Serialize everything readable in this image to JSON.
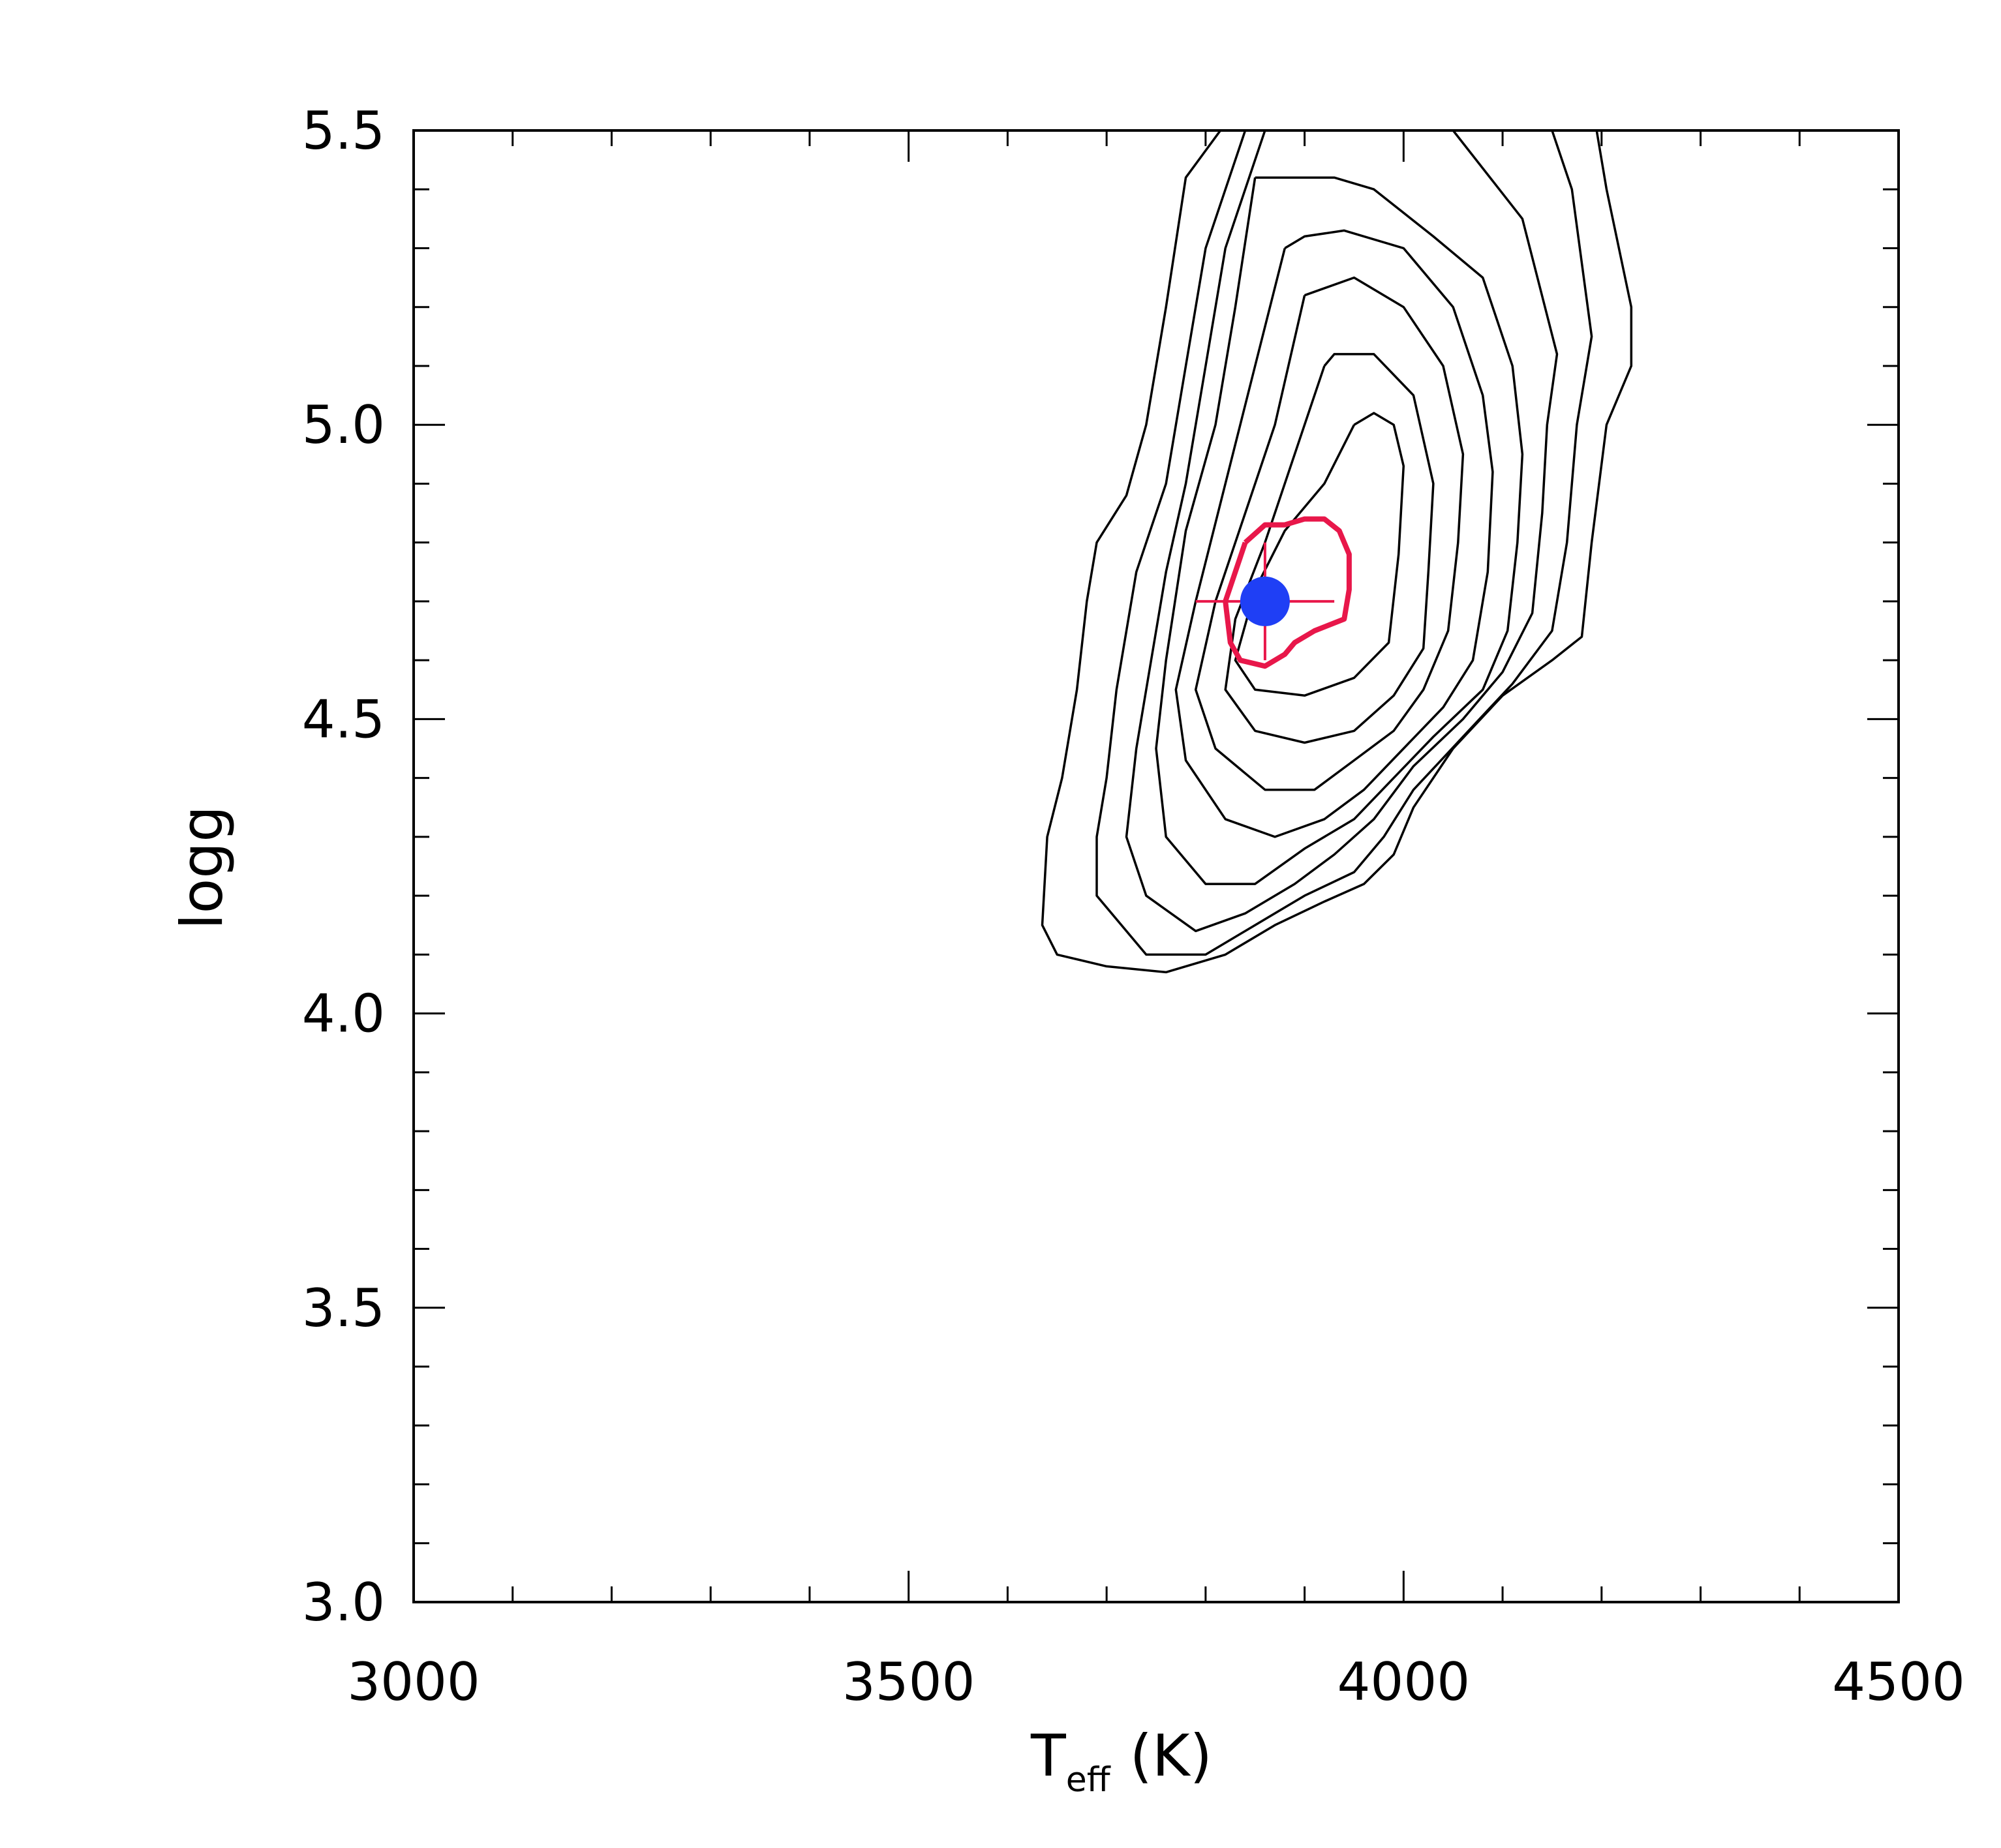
{
  "chart_data": {
    "type": "contour",
    "title": "",
    "xlabel": {
      "main": "T",
      "sub": "eff",
      "units": "(K)"
    },
    "ylabel": "logg",
    "xlim": [
      3000,
      4500
    ],
    "ylim": [
      3.0,
      5.5
    ],
    "x_ticks": [
      3000,
      3500,
      4000,
      4500
    ],
    "x_tick_labels": [
      "3000",
      "3500",
      "4000",
      "4500"
    ],
    "x_minor_step": 100,
    "y_ticks": [
      3.0,
      3.5,
      4.0,
      4.5,
      5.0,
      5.5
    ],
    "y_tick_labels": [
      "3.0",
      "3.5",
      "4.0",
      "4.5",
      "5.0",
      "5.5"
    ],
    "y_minor_step": 0.1,
    "grid": false,
    "contours": [
      {
        "color": "#000000",
        "points": [
          [
            3815,
            5.5
          ],
          [
            3780,
            5.42
          ],
          [
            3760,
            5.2
          ],
          [
            3740,
            5.0
          ],
          [
            3720,
            4.88
          ],
          [
            3690,
            4.8
          ],
          [
            3680,
            4.7
          ],
          [
            3670,
            4.55
          ],
          [
            3655,
            4.4
          ],
          [
            3640,
            4.3
          ],
          [
            3635,
            4.15
          ],
          [
            3650,
            4.1
          ],
          [
            3700,
            4.08
          ],
          [
            3760,
            4.07
          ],
          [
            3820,
            4.1
          ],
          [
            3870,
            4.15
          ],
          [
            3920,
            4.19
          ],
          [
            3960,
            4.22
          ],
          [
            3990,
            4.27
          ],
          [
            4010,
            4.35
          ],
          [
            4050,
            4.45
          ],
          [
            4100,
            4.54
          ],
          [
            4150,
            4.6
          ],
          [
            4180,
            4.64
          ],
          [
            4190,
            4.8
          ],
          [
            4205,
            5.0
          ],
          [
            4230,
            5.1
          ],
          [
            4230,
            5.2
          ],
          [
            4205,
            5.4
          ],
          [
            4195,
            5.5
          ]
        ]
      },
      {
        "color": "#000000",
        "points": [
          [
            3840,
            5.5
          ],
          [
            3800,
            5.3
          ],
          [
            3780,
            5.1
          ],
          [
            3760,
            4.9
          ],
          [
            3730,
            4.75
          ],
          [
            3710,
            4.55
          ],
          [
            3700,
            4.4
          ],
          [
            3690,
            4.3
          ],
          [
            3690,
            4.2
          ],
          [
            3740,
            4.1
          ],
          [
            3800,
            4.1
          ],
          [
            3850,
            4.15
          ],
          [
            3900,
            4.2
          ],
          [
            3950,
            4.24
          ],
          [
            3980,
            4.3
          ],
          [
            4010,
            4.38
          ],
          [
            4060,
            4.47
          ],
          [
            4110,
            4.56
          ],
          [
            4150,
            4.65
          ],
          [
            4165,
            4.8
          ],
          [
            4175,
            5.0
          ],
          [
            4190,
            5.15
          ],
          [
            4170,
            5.4
          ],
          [
            4150,
            5.5
          ]
        ]
      },
      {
        "color": "#000000",
        "points": [
          [
            3860,
            5.5
          ],
          [
            3820,
            5.3
          ],
          [
            3800,
            5.1
          ],
          [
            3780,
            4.9
          ],
          [
            3760,
            4.75
          ],
          [
            3740,
            4.55
          ],
          [
            3730,
            4.45
          ],
          [
            3720,
            4.3
          ],
          [
            3740,
            4.2
          ],
          [
            3790,
            4.14
          ],
          [
            3840,
            4.17
          ],
          [
            3890,
            4.22
          ],
          [
            3930,
            4.27
          ],
          [
            3970,
            4.33
          ],
          [
            4010,
            4.42
          ],
          [
            4060,
            4.5
          ],
          [
            4100,
            4.58
          ],
          [
            4130,
            4.68
          ],
          [
            4140,
            4.85
          ],
          [
            4145,
            5.0
          ],
          [
            4155,
            5.12
          ],
          [
            4120,
            5.35
          ],
          [
            4050,
            5.5
          ]
        ]
      },
      {
        "color": "#000000",
        "points": [
          [
            3850,
            5.42
          ],
          [
            3830,
            5.2
          ],
          [
            3810,
            5.0
          ],
          [
            3780,
            4.82
          ],
          [
            3760,
            4.6
          ],
          [
            3750,
            4.45
          ],
          [
            3760,
            4.3
          ],
          [
            3800,
            4.22
          ],
          [
            3850,
            4.22
          ],
          [
            3900,
            4.28
          ],
          [
            3950,
            4.33
          ],
          [
            3990,
            4.4
          ],
          [
            4030,
            4.47
          ],
          [
            4080,
            4.55
          ],
          [
            4105,
            4.65
          ],
          [
            4115,
            4.8
          ],
          [
            4120,
            4.95
          ],
          [
            4110,
            5.1
          ],
          [
            4080,
            5.25
          ],
          [
            4030,
            5.32
          ],
          [
            3970,
            5.4
          ],
          [
            3930,
            5.42
          ],
          [
            3890,
            5.42
          ],
          [
            3850,
            5.42
          ]
        ]
      },
      {
        "color": "#000000",
        "points": [
          [
            3880,
            5.3
          ],
          [
            3850,
            5.1
          ],
          [
            3820,
            4.9
          ],
          [
            3790,
            4.7
          ],
          [
            3770,
            4.55
          ],
          [
            3780,
            4.43
          ],
          [
            3820,
            4.33
          ],
          [
            3870,
            4.3
          ],
          [
            3920,
            4.33
          ],
          [
            3960,
            4.38
          ],
          [
            4000,
            4.45
          ],
          [
            4040,
            4.52
          ],
          [
            4070,
            4.6
          ],
          [
            4085,
            4.75
          ],
          [
            4090,
            4.92
          ],
          [
            4080,
            5.05
          ],
          [
            4050,
            5.2
          ],
          [
            4000,
            5.3
          ],
          [
            3940,
            5.33
          ],
          [
            3900,
            5.32
          ],
          [
            3880,
            5.3
          ]
        ]
      },
      {
        "color": "#000000",
        "points": [
          [
            3900,
            5.22
          ],
          [
            3870,
            5.0
          ],
          [
            3840,
            4.85
          ],
          [
            3810,
            4.7
          ],
          [
            3790,
            4.55
          ],
          [
            3810,
            4.45
          ],
          [
            3860,
            4.38
          ],
          [
            3910,
            4.38
          ],
          [
            3950,
            4.43
          ],
          [
            3990,
            4.48
          ],
          [
            4020,
            4.55
          ],
          [
            4045,
            4.65
          ],
          [
            4055,
            4.8
          ],
          [
            4060,
            4.95
          ],
          [
            4040,
            5.1
          ],
          [
            4000,
            5.2
          ],
          [
            3950,
            5.25
          ],
          [
            3900,
            5.22
          ]
        ]
      },
      {
        "color": "#000000",
        "points": [
          [
            3920,
            5.1
          ],
          [
            3890,
            4.95
          ],
          [
            3860,
            4.8
          ],
          [
            3830,
            4.67
          ],
          [
            3820,
            4.55
          ],
          [
            3850,
            4.48
          ],
          [
            3900,
            4.46
          ],
          [
            3950,
            4.48
          ],
          [
            3990,
            4.54
          ],
          [
            4020,
            4.62
          ],
          [
            4025,
            4.75
          ],
          [
            4030,
            4.9
          ],
          [
            4010,
            5.05
          ],
          [
            3970,
            5.12
          ],
          [
            3930,
            5.12
          ],
          [
            3920,
            5.1
          ]
        ]
      },
      {
        "color": "#000000",
        "points": [
          [
            3950,
            5.0
          ],
          [
            3920,
            4.9
          ],
          [
            3880,
            4.82
          ],
          [
            3850,
            4.72
          ],
          [
            3830,
            4.6
          ],
          [
            3850,
            4.55
          ],
          [
            3900,
            4.54
          ],
          [
            3950,
            4.57
          ],
          [
            3985,
            4.63
          ],
          [
            3995,
            4.78
          ],
          [
            4000,
            4.93
          ],
          [
            3990,
            5.0
          ],
          [
            3970,
            5.02
          ],
          [
            3950,
            5.0
          ]
        ]
      },
      {
        "color": "#e8174a",
        "highlight": true,
        "points": [
          [
            3840,
            4.8
          ],
          [
            3830,
            4.75
          ],
          [
            3820,
            4.7
          ],
          [
            3825,
            4.63
          ],
          [
            3835,
            4.6
          ],
          [
            3860,
            4.59
          ],
          [
            3880,
            4.61
          ],
          [
            3890,
            4.63
          ],
          [
            3910,
            4.65
          ],
          [
            3940,
            4.67
          ],
          [
            3945,
            4.72
          ],
          [
            3945,
            4.78
          ],
          [
            3935,
            4.82
          ],
          [
            3920,
            4.84
          ],
          [
            3900,
            4.84
          ],
          [
            3880,
            4.83
          ],
          [
            3860,
            4.83
          ],
          [
            3840,
            4.8
          ]
        ]
      }
    ],
    "best_fit": {
      "x": 3860,
      "y": 4.7,
      "x_err": 70,
      "y_err": 0.1,
      "marker_color": "#1f3ff5",
      "errorbar_color": "#e8174a"
    }
  }
}
